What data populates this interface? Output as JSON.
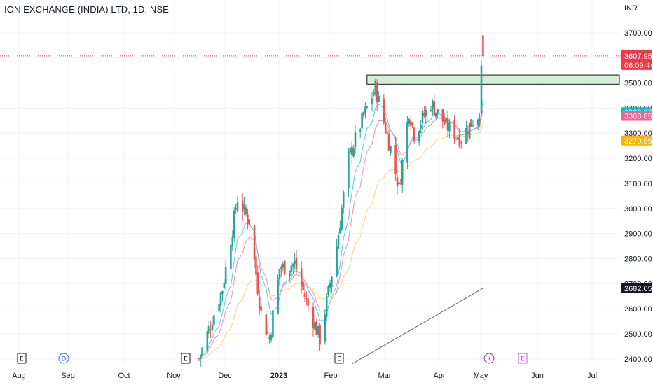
{
  "header": {
    "symbol_title": "ION EXCHANGE (INDIA) LTD, 1D, NSE",
    "currency": "INR"
  },
  "chart_data": {
    "type": "candlestick",
    "title": "ION EXCHANGE (INDIA) LTD, 1D, NSE",
    "y_unit": "INR",
    "ylim": [
      2370,
      3740
    ],
    "y_ticks": [
      {
        "value": 3700,
        "label": "3700.00"
      },
      {
        "value": 3600,
        "label": "3600.00"
      },
      {
        "value": 3500,
        "label": "3500.00"
      },
      {
        "value": 3400,
        "label": "3400.00"
      },
      {
        "value": 3300,
        "label": "3300.00"
      },
      {
        "value": 3200,
        "label": "3200.00"
      },
      {
        "value": 3100,
        "label": "3100.00"
      },
      {
        "value": 3000,
        "label": "3000.00"
      },
      {
        "value": 2900,
        "label": "2900.00"
      },
      {
        "value": 2800,
        "label": "2800.00"
      },
      {
        "value": 2700,
        "label": "2700.00"
      },
      {
        "value": 2600,
        "label": "2600.00"
      },
      {
        "value": 2500,
        "label": "2500.00"
      },
      {
        "value": 2400,
        "label": "2400.00"
      }
    ],
    "x_ticks": [
      {
        "label": "Aug",
        "bold": false
      },
      {
        "label": "Sep",
        "bold": false
      },
      {
        "label": "Oct",
        "bold": false
      },
      {
        "label": "Nov",
        "bold": false
      },
      {
        "label": "Dec",
        "bold": false
      },
      {
        "label": "2023",
        "bold": true
      },
      {
        "label": "Feb",
        "bold": false
      },
      {
        "label": "Mar",
        "bold": false
      },
      {
        "label": "Apr",
        "bold": false
      },
      {
        "label": "May",
        "bold": false
      },
      {
        "label": "Jun",
        "bold": false
      },
      {
        "label": "Jul",
        "bold": false
      }
    ],
    "grid": true,
    "colors": {
      "up": "#26a69a",
      "down": "#ef5350",
      "ema_fast": "#4dd0e1",
      "ema_mid": "#f48fb1",
      "ema_slow": "#ffd180",
      "ma_long": "#5d606b",
      "zone_fill": "#c8e6c9",
      "last_price_line": "#f23645"
    },
    "series_endpoints": [
      {
        "value": 3383.8,
        "label": "3383.80",
        "color": "#00bcd4"
      },
      {
        "value": 3368.85,
        "label": "3368.85",
        "color": "#f06292"
      },
      {
        "value": 3270.55,
        "label": "3270.55",
        "color": "#ffb300"
      },
      {
        "value": 2682.05,
        "label": "2682.05",
        "color": "#131722"
      }
    ],
    "last_price": {
      "value": 3607.95,
      "label": "3607.95",
      "countdown": "06:09:44",
      "color": "#f23645"
    },
    "zone": {
      "low": 3495,
      "high": 3532
    },
    "events": [
      {
        "label": "E",
        "kind": "earnings"
      },
      {
        "label": "D",
        "kind": "dividend"
      },
      {
        "label": "E",
        "kind": "earnings"
      },
      {
        "label": "E",
        "kind": "earnings"
      },
      {
        "label": "⚡",
        "kind": "split"
      },
      {
        "label": "E",
        "kind": "earnings-upcoming"
      }
    ],
    "anchors": [
      {
        "date": "2022-11-16",
        "value": 2400
      },
      {
        "date": "2022-11-30",
        "value": 2680
      },
      {
        "date": "2022-12-09",
        "value": 3040
      },
      {
        "date": "2022-12-16",
        "value": 2950
      },
      {
        "date": "2022-12-23",
        "value": 2580
      },
      {
        "date": "2022-12-28",
        "value": 2480
      },
      {
        "date": "2023-01-03",
        "value": 2760
      },
      {
        "date": "2023-01-12",
        "value": 2780
      },
      {
        "date": "2023-01-18",
        "value": 2650
      },
      {
        "date": "2023-01-27",
        "value": 2480
      },
      {
        "date": "2023-02-06",
        "value": 2850
      },
      {
        "date": "2023-02-13",
        "value": 3200
      },
      {
        "date": "2023-02-21",
        "value": 3350
      },
      {
        "date": "2023-03-01",
        "value": 3480
      },
      {
        "date": "2023-03-10",
        "value": 3240
      },
      {
        "date": "2023-03-15",
        "value": 3080
      },
      {
        "date": "2023-03-21",
        "value": 3390
      },
      {
        "date": "2023-03-24",
        "value": 3300
      },
      {
        "date": "2023-04-03",
        "value": 3420
      },
      {
        "date": "2023-04-12",
        "value": 3330
      },
      {
        "date": "2023-04-21",
        "value": 3280
      },
      {
        "date": "2023-04-28",
        "value": 3350
      },
      {
        "date": "2023-05-02",
        "value": 3380
      }
    ]
  }
}
